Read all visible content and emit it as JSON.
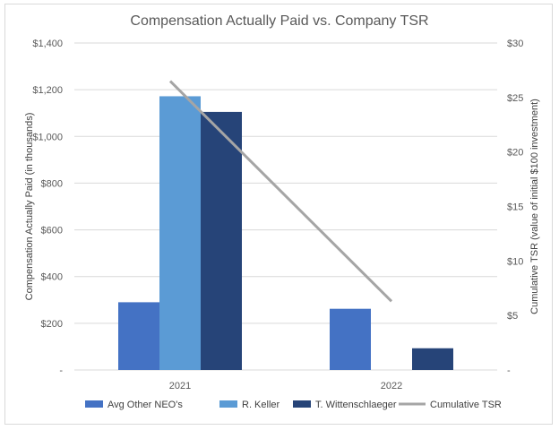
{
  "chart_data": {
    "type": "bar",
    "title": "Compensation Actually Paid vs. Company TSR",
    "categories": [
      "2021",
      "2022"
    ],
    "ylabel": "Compensation Actually Paid (in thousands)",
    "ylabel_right": "Cumulative TSR (value of initial $100 investment)",
    "ylim": [
      0,
      1400
    ],
    "y_ticks": [
      0,
      200,
      400,
      600,
      800,
      1000,
      1200,
      1400
    ],
    "y_tick_labels": [
      "-",
      "$200",
      "$400",
      "$600",
      "$800",
      "$1,000",
      "$1,200",
      "$1,400"
    ],
    "y2lim": [
      0,
      30
    ],
    "y2_ticks": [
      0,
      5,
      10,
      15,
      20,
      25,
      30
    ],
    "y2_tick_labels": [
      "-",
      "$5",
      "$10",
      "$15",
      "$20",
      "$25",
      "$30"
    ],
    "series": [
      {
        "name": "Avg Other NEO's",
        "type": "bar",
        "axis": "left",
        "color": "#4472c4",
        "values": [
          290,
          262
        ]
      },
      {
        "name": "R. Keller",
        "type": "bar",
        "axis": "left",
        "color": "#5b9bd5",
        "values": [
          1172,
          0
        ]
      },
      {
        "name": "T. Wittenschlaeger",
        "type": "bar",
        "axis": "left",
        "color": "#264478",
        "values": [
          1105,
          93
        ]
      },
      {
        "name": "Cumulative TSR",
        "type": "line",
        "axis": "right",
        "color": "#a5a5a5",
        "values": [
          26.5,
          6.3
        ]
      }
    ],
    "legend_position": "bottom",
    "grid": true
  }
}
